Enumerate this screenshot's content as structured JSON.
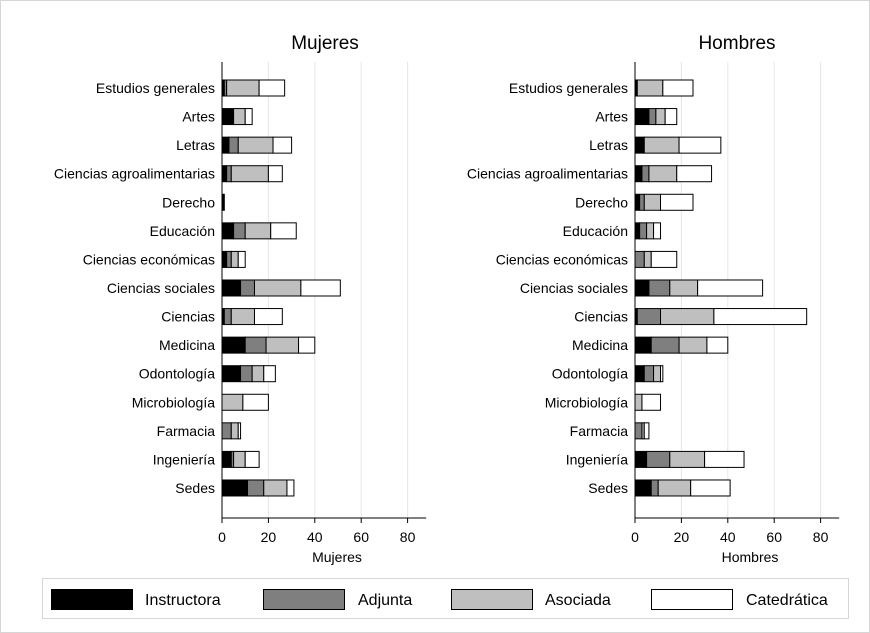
{
  "chart_data": [
    {
      "type": "bar",
      "orientation": "horizontal",
      "stacked": true,
      "title": "Mujeres",
      "xlabel": "Mujeres",
      "ylabel": "",
      "xlim": [
        0,
        88
      ],
      "xticks": [
        0,
        20,
        40,
        60,
        80
      ],
      "grid": true,
      "legend": "bottom",
      "categories": [
        "Estudios generales",
        "Artes",
        "Letras",
        "Ciencias agroalimentarias",
        "Derecho",
        "Educación",
        "Ciencias económicas",
        "Ciencias sociales",
        "Ciencias",
        "Medicina",
        "Odontología",
        "Microbiología",
        "Farmacia",
        "Ingeniería",
        "Sedes"
      ],
      "series": [
        {
          "name": "Instructora",
          "color": "#000000",
          "values": [
            1,
            5,
            3,
            2,
            1,
            5,
            2,
            8,
            1,
            10,
            8,
            0,
            0,
            4,
            11
          ]
        },
        {
          "name": "Adjunta",
          "color": "#7f7f7f",
          "values": [
            1,
            0,
            4,
            2,
            0,
            5,
            2,
            6,
            3,
            9,
            5,
            0,
            4,
            1,
            7
          ]
        },
        {
          "name": "Asociada",
          "color": "#bfbfbf",
          "values": [
            14,
            5,
            15,
            16,
            0,
            11,
            3,
            20,
            10,
            14,
            5,
            9,
            3,
            5,
            10
          ]
        },
        {
          "name": "Catedrática",
          "color": "#ffffff",
          "values": [
            11,
            3,
            8,
            6,
            0,
            11,
            3,
            17,
            12,
            7,
            5,
            11,
            1,
            6,
            3
          ]
        }
      ]
    },
    {
      "type": "bar",
      "orientation": "horizontal",
      "stacked": true,
      "title": "Hombres",
      "xlabel": "Hombres",
      "ylabel": "",
      "xlim": [
        0,
        88
      ],
      "xticks": [
        0,
        20,
        40,
        60,
        80
      ],
      "grid": true,
      "legend": "bottom",
      "categories": [
        "Estudios generales",
        "Artes",
        "Letras",
        "Ciencias agroalimentarias",
        "Derecho",
        "Educación",
        "Ciencias económicas",
        "Ciencias sociales",
        "Ciencias",
        "Medicina",
        "Odontología",
        "Microbiología",
        "Farmacia",
        "Ingeniería",
        "Sedes"
      ],
      "series": [
        {
          "name": "Instructora",
          "color": "#000000",
          "values": [
            1,
            6,
            4,
            3,
            2,
            2,
            0,
            6,
            1,
            7,
            4,
            0,
            0,
            5,
            7
          ]
        },
        {
          "name": "Adjunta",
          "color": "#7f7f7f",
          "values": [
            0,
            3,
            0,
            3,
            2,
            3,
            4,
            9,
            10,
            12,
            4,
            0,
            3,
            10,
            3
          ]
        },
        {
          "name": "Asociada",
          "color": "#bfbfbf",
          "values": [
            11,
            4,
            15,
            12,
            7,
            3,
            3,
            12,
            23,
            12,
            3,
            3,
            1,
            15,
            14
          ]
        },
        {
          "name": "Catedrática",
          "color": "#ffffff",
          "values": [
            13,
            5,
            18,
            15,
            14,
            3,
            11,
            28,
            40,
            9,
            1,
            8,
            2,
            17,
            17
          ]
        }
      ]
    }
  ]
}
